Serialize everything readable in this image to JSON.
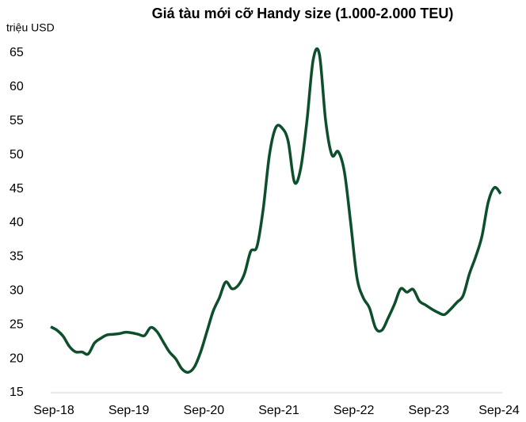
{
  "chart_data": {
    "type": "line",
    "title": "Giá tàu mới cỡ Handy size (1.000-2.000 TEU)",
    "y_label": "triệu USD",
    "categories": [
      "Sep-18",
      null,
      null,
      null,
      null,
      null,
      null,
      null,
      null,
      null,
      null,
      null,
      "Sep-19",
      null,
      null,
      null,
      null,
      null,
      null,
      null,
      null,
      null,
      null,
      null,
      "Sep-20",
      null,
      null,
      null,
      null,
      null,
      null,
      null,
      null,
      null,
      null,
      null,
      "Sep-21",
      null,
      null,
      null,
      null,
      null,
      null,
      null,
      null,
      null,
      null,
      null,
      "Sep-22",
      null,
      null,
      null,
      null,
      null,
      null,
      null,
      null,
      null,
      null,
      null,
      "Sep-23",
      null,
      null,
      null,
      null,
      null,
      null,
      null,
      null,
      null,
      null,
      null,
      "Sep-24"
    ],
    "series": [
      {
        "name": "Handy size",
        "color": "#0d4f2b",
        "values": [
          24.7,
          24.2,
          23.3,
          21.8,
          21.0,
          21.0,
          20.7,
          22.3,
          23.0,
          23.5,
          23.6,
          23.7,
          23.9,
          23.8,
          23.6,
          23.4,
          24.6,
          24.0,
          22.5,
          21.0,
          20.0,
          18.5,
          18.0,
          18.8,
          21.0,
          24.0,
          27.0,
          29.0,
          31.3,
          30.3,
          30.8,
          32.5,
          35.8,
          36.5,
          42,
          50,
          54,
          54,
          52,
          46,
          48,
          55,
          64,
          64.8,
          55,
          50,
          50.5,
          47.5,
          40,
          32,
          29,
          27.5,
          24.5,
          24.2,
          26,
          28,
          30.3,
          29.8,
          30.2,
          28.5,
          27.9,
          27.3,
          26.8,
          26.5,
          27.3,
          28.3,
          29.3,
          32.5,
          35,
          38,
          43,
          45.2,
          44.3
        ]
      }
    ],
    "ylim": [
      15,
      65
    ],
    "yticks": [
      15,
      20,
      25,
      30,
      35,
      40,
      45,
      50,
      55,
      60,
      65
    ],
    "grid": false
  }
}
